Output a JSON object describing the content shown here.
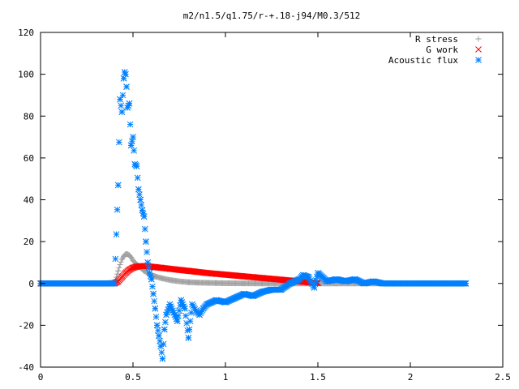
{
  "chart_data": {
    "type": "scatter",
    "title": "m2/n1.5/q1.75/r-+.18-j94/M0.3/512",
    "xlabel": "",
    "ylabel": "",
    "xlim": [
      0,
      2.5
    ],
    "ylim": [
      -40,
      120
    ],
    "x_ticks": [
      0,
      0.5,
      1,
      1.5,
      2,
      2.5
    ],
    "x_tick_labels": [
      "0",
      "0.5",
      "1",
      "1.5",
      "2",
      "2.5"
    ],
    "y_ticks": [
      -40,
      -20,
      0,
      20,
      40,
      60,
      80,
      100,
      120
    ],
    "y_tick_labels": [
      "-40",
      "-20",
      "0",
      "20",
      "40",
      "60",
      "80",
      "100",
      "120"
    ],
    "grid": false,
    "legend_position": "top-right",
    "series": [
      {
        "name": "R stress",
        "marker": "plus",
        "color": "#a0a0a0",
        "x": [
          0,
          0.05,
          0.1,
          0.15,
          0.2,
          0.25,
          0.3,
          0.35,
          0.4,
          0.41,
          0.42,
          0.43,
          0.44,
          0.45,
          0.46,
          0.47,
          0.48,
          0.49,
          0.5,
          0.52,
          0.54,
          0.56,
          0.58,
          0.6,
          0.62,
          0.65,
          0.68,
          0.71,
          0.75,
          0.8,
          0.85,
          0.9,
          0.95,
          1.0,
          1.1,
          1.2,
          1.3,
          1.4,
          1.5,
          1.6,
          1.7,
          1.8,
          1.9,
          2.0,
          2.1,
          2.2,
          2.3
        ],
        "y": [
          0,
          0,
          0,
          0,
          0,
          0,
          0,
          0,
          0.5,
          3,
          6,
          9,
          11.5,
          13,
          14,
          14,
          13.5,
          12.5,
          11,
          9,
          7.5,
          6,
          5,
          4,
          3.4,
          2.6,
          2,
          1.5,
          1,
          0.6,
          0.4,
          0.3,
          0.2,
          0.1,
          0.05,
          0,
          0,
          0,
          0,
          0,
          0,
          0,
          0,
          0,
          0,
          0,
          0
        ]
      },
      {
        "name": "G work",
        "marker": "cross",
        "color": "#ff0000",
        "x": [
          0,
          0.05,
          0.1,
          0.15,
          0.2,
          0.25,
          0.3,
          0.35,
          0.4,
          0.42,
          0.44,
          0.46,
          0.48,
          0.5,
          0.52,
          0.54,
          0.56,
          0.58,
          0.6,
          0.62,
          0.65,
          0.7,
          0.75,
          0.8,
          0.85,
          0.9,
          0.95,
          1.0,
          1.05,
          1.1,
          1.15,
          1.2,
          1.25,
          1.3,
          1.35,
          1.4,
          1.45,
          1.5
        ],
        "y": [
          0,
          0,
          0,
          0,
          0,
          0,
          0,
          0,
          0,
          1,
          3,
          5,
          6.5,
          7.5,
          8,
          8.3,
          8.3,
          8.2,
          8,
          7.8,
          7.5,
          7,
          6.5,
          6,
          5.5,
          5,
          4.6,
          4.2,
          3.8,
          3.4,
          3,
          2.6,
          2.2,
          1.8,
          1.4,
          1,
          0.5,
          0.2
        ]
      },
      {
        "name": "Acoustic flux",
        "marker": "star",
        "color": "#0080ff",
        "x": [
          0,
          0.05,
          0.1,
          0.15,
          0.2,
          0.25,
          0.3,
          0.35,
          0.4,
          0.42,
          0.43,
          0.44,
          0.45,
          0.455,
          0.46,
          0.465,
          0.47,
          0.48,
          0.49,
          0.5,
          0.51,
          0.52,
          0.53,
          0.54,
          0.55,
          0.56,
          0.57,
          0.58,
          0.59,
          0.6,
          0.61,
          0.62,
          0.63,
          0.64,
          0.65,
          0.66,
          0.67,
          0.68,
          0.7,
          0.72,
          0.74,
          0.76,
          0.78,
          0.8,
          0.82,
          0.84,
          0.86,
          0.88,
          0.9,
          0.95,
          1.0,
          1.05,
          1.1,
          1.15,
          1.2,
          1.25,
          1.3,
          1.35,
          1.4,
          1.42,
          1.45,
          1.48,
          1.5,
          1.55,
          1.6,
          1.65,
          1.7,
          1.75,
          1.8,
          1.85,
          1.9,
          2.0,
          2.1,
          2.2,
          2.3
        ],
        "y": [
          0,
          0,
          0,
          0,
          0,
          0,
          0,
          0,
          0,
          47,
          88,
          82,
          98,
          101,
          100,
          94,
          84,
          86,
          66,
          70,
          57,
          56,
          45,
          40,
          35,
          32,
          20,
          10,
          5,
          2,
          -5,
          -12,
          -20,
          -25,
          -30,
          -36,
          -22,
          -15,
          -10,
          -14,
          -18,
          -8,
          -12,
          -26,
          -10,
          -13,
          -15,
          -12,
          -10,
          -8,
          -9,
          -7,
          -5,
          -6,
          -4,
          -3,
          -3,
          0,
          2,
          4,
          3,
          -2,
          5,
          1,
          2,
          1,
          2,
          0,
          1,
          0,
          0,
          0,
          0,
          0,
          0
        ]
      }
    ]
  }
}
